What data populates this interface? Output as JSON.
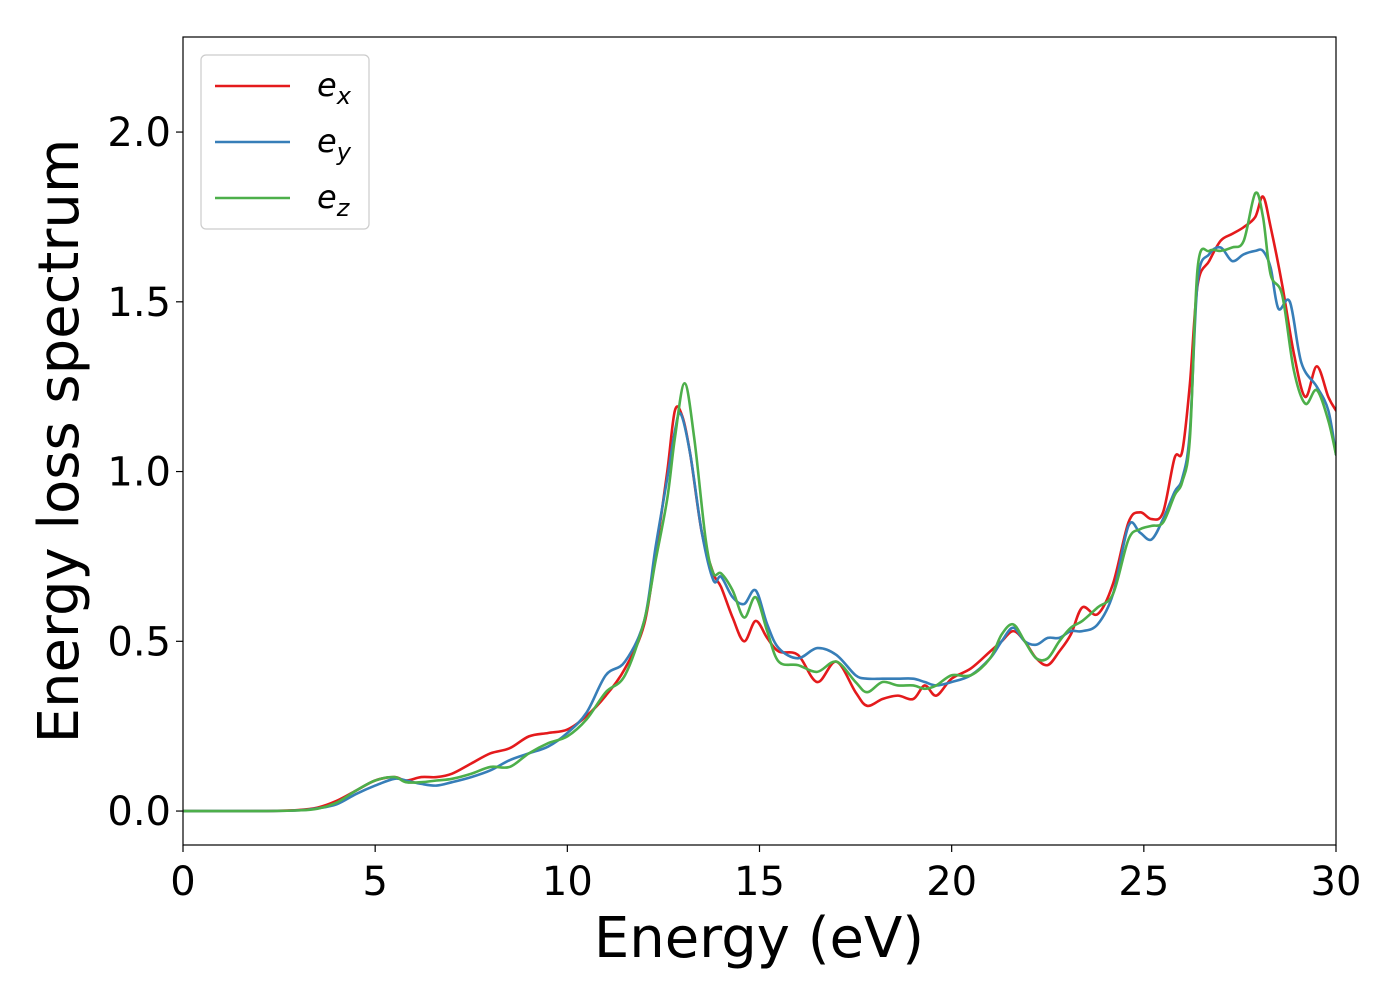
{
  "chart_data": {
    "type": "line",
    "title": "",
    "xlabel": "Energy (eV)",
    "ylabel": "Energy loss spectrum",
    "xlim": [
      0,
      30
    ],
    "ylim": [
      -0.1,
      2.28
    ],
    "xticks": [
      0,
      5,
      10,
      15,
      20,
      25,
      30
    ],
    "xtick_labels": [
      "0",
      "5",
      "10",
      "15",
      "20",
      "25",
      "30"
    ],
    "yticks": [
      0.0,
      0.5,
      1.0,
      1.5,
      2.0
    ],
    "ytick_labels": [
      "0.0",
      "0.5",
      "1.0",
      "1.5",
      "2.0"
    ],
    "grid": false,
    "legend_position": "top-left",
    "series": [
      {
        "name": "e_x",
        "label_main": "e",
        "label_sub": "x",
        "color": "#e41a1c",
        "x": [
          0,
          2,
          3,
          3.5,
          4,
          4.5,
          5,
          5.5,
          5.8,
          6.2,
          6.6,
          7,
          7.5,
          8,
          8.5,
          9,
          9.5,
          10,
          10.5,
          11,
          11.5,
          12,
          12.3,
          12.6,
          12.8,
          13.0,
          13.2,
          13.5,
          13.8,
          14.0,
          14.3,
          14.6,
          14.9,
          15.2,
          15.5,
          16.0,
          16.5,
          17.0,
          17.5,
          17.8,
          18.2,
          18.6,
          19.0,
          19.3,
          19.6,
          20.0,
          20.5,
          21.0,
          21.3,
          21.6,
          21.9,
          22.2,
          22.5,
          22.8,
          23.1,
          23.4,
          23.8,
          24.2,
          24.6,
          24.9,
          25.2,
          25.5,
          25.8,
          26.0,
          26.2,
          26.4,
          26.7,
          27.0,
          27.3,
          27.6,
          27.9,
          28.1,
          28.3,
          28.6,
          28.9,
          29.2,
          29.5,
          29.8,
          30
        ],
        "y": [
          0.0,
          0.0,
          0.003,
          0.01,
          0.03,
          0.06,
          0.09,
          0.1,
          0.09,
          0.1,
          0.1,
          0.11,
          0.14,
          0.17,
          0.185,
          0.22,
          0.23,
          0.24,
          0.28,
          0.34,
          0.42,
          0.55,
          0.76,
          1.0,
          1.18,
          1.16,
          1.05,
          0.82,
          0.7,
          0.66,
          0.57,
          0.5,
          0.56,
          0.51,
          0.47,
          0.46,
          0.38,
          0.44,
          0.35,
          0.31,
          0.33,
          0.34,
          0.33,
          0.37,
          0.34,
          0.39,
          0.42,
          0.47,
          0.5,
          0.53,
          0.5,
          0.45,
          0.43,
          0.47,
          0.52,
          0.6,
          0.58,
          0.67,
          0.85,
          0.88,
          0.86,
          0.88,
          1.04,
          1.06,
          1.26,
          1.55,
          1.62,
          1.68,
          1.7,
          1.72,
          1.75,
          1.81,
          1.72,
          1.55,
          1.35,
          1.22,
          1.31,
          1.22,
          1.18
        ]
      },
      {
        "name": "e_y",
        "label_main": "e",
        "label_sub": "y",
        "color": "#377eb8",
        "x": [
          0,
          2,
          3,
          3.5,
          4,
          4.5,
          5,
          5.5,
          5.8,
          6.2,
          6.6,
          7,
          7.5,
          8,
          8.5,
          9,
          9.5,
          10,
          10.5,
          11,
          11.5,
          12,
          12.3,
          12.6,
          12.8,
          12.95,
          13.2,
          13.5,
          13.8,
          14.0,
          14.3,
          14.6,
          14.9,
          15.2,
          15.5,
          16.0,
          16.5,
          17.0,
          17.5,
          17.8,
          18.2,
          18.6,
          19.0,
          19.3,
          19.6,
          20.0,
          20.5,
          21.0,
          21.3,
          21.6,
          21.9,
          22.2,
          22.5,
          22.8,
          23.1,
          23.4,
          23.8,
          24.2,
          24.6,
          24.9,
          25.2,
          25.5,
          25.8,
          26.0,
          26.2,
          26.4,
          26.7,
          27.0,
          27.3,
          27.6,
          27.9,
          28.1,
          28.3,
          28.5,
          28.8,
          29.1,
          29.5,
          29.8,
          30
        ],
        "y": [
          0.0,
          0.0,
          0.002,
          0.008,
          0.02,
          0.05,
          0.075,
          0.095,
          0.09,
          0.08,
          0.075,
          0.085,
          0.1,
          0.12,
          0.15,
          0.17,
          0.19,
          0.23,
          0.29,
          0.4,
          0.44,
          0.56,
          0.78,
          0.98,
          1.12,
          1.17,
          1.05,
          0.82,
          0.68,
          0.69,
          0.63,
          0.61,
          0.65,
          0.55,
          0.48,
          0.45,
          0.48,
          0.46,
          0.4,
          0.39,
          0.39,
          0.39,
          0.39,
          0.38,
          0.37,
          0.38,
          0.4,
          0.45,
          0.5,
          0.54,
          0.5,
          0.49,
          0.51,
          0.51,
          0.53,
          0.53,
          0.55,
          0.64,
          0.84,
          0.82,
          0.8,
          0.86,
          0.94,
          0.98,
          1.12,
          1.56,
          1.64,
          1.66,
          1.62,
          1.64,
          1.65,
          1.65,
          1.6,
          1.48,
          1.5,
          1.32,
          1.25,
          1.18,
          1.05
        ]
      },
      {
        "name": "e_z",
        "label_main": "e",
        "label_sub": "z",
        "color": "#4daf4a",
        "x": [
          0,
          2,
          3,
          3.5,
          4,
          4.5,
          5,
          5.5,
          5.8,
          6.2,
          6.6,
          7,
          7.5,
          8,
          8.5,
          9,
          9.5,
          10,
          10.5,
          11,
          11.5,
          12,
          12.3,
          12.6,
          12.8,
          13.05,
          13.3,
          13.6,
          13.8,
          14.0,
          14.3,
          14.6,
          14.9,
          15.2,
          15.5,
          16.0,
          16.5,
          17.0,
          17.5,
          17.8,
          18.2,
          18.6,
          19.0,
          19.3,
          19.6,
          20.0,
          20.5,
          21.0,
          21.3,
          21.6,
          21.9,
          22.2,
          22.5,
          22.8,
          23.1,
          23.4,
          23.8,
          24.2,
          24.6,
          24.9,
          25.2,
          25.5,
          25.8,
          26.0,
          26.2,
          26.4,
          26.7,
          27.0,
          27.3,
          27.6,
          27.9,
          28.1,
          28.3,
          28.6,
          28.9,
          29.2,
          29.5,
          29.8,
          30
        ],
        "y": [
          0.0,
          0.0,
          0.002,
          0.007,
          0.025,
          0.06,
          0.09,
          0.1,
          0.085,
          0.085,
          0.09,
          0.095,
          0.11,
          0.13,
          0.13,
          0.17,
          0.2,
          0.22,
          0.27,
          0.35,
          0.4,
          0.56,
          0.74,
          0.92,
          1.1,
          1.26,
          1.1,
          0.8,
          0.7,
          0.7,
          0.65,
          0.57,
          0.63,
          0.53,
          0.44,
          0.43,
          0.41,
          0.44,
          0.38,
          0.35,
          0.38,
          0.37,
          0.37,
          0.36,
          0.37,
          0.4,
          0.4,
          0.45,
          0.52,
          0.55,
          0.5,
          0.45,
          0.45,
          0.5,
          0.54,
          0.56,
          0.6,
          0.64,
          0.8,
          0.83,
          0.84,
          0.85,
          0.93,
          0.97,
          1.1,
          1.6,
          1.65,
          1.65,
          1.66,
          1.68,
          1.82,
          1.75,
          1.58,
          1.52,
          1.3,
          1.2,
          1.24,
          1.15,
          1.05
        ]
      }
    ]
  }
}
